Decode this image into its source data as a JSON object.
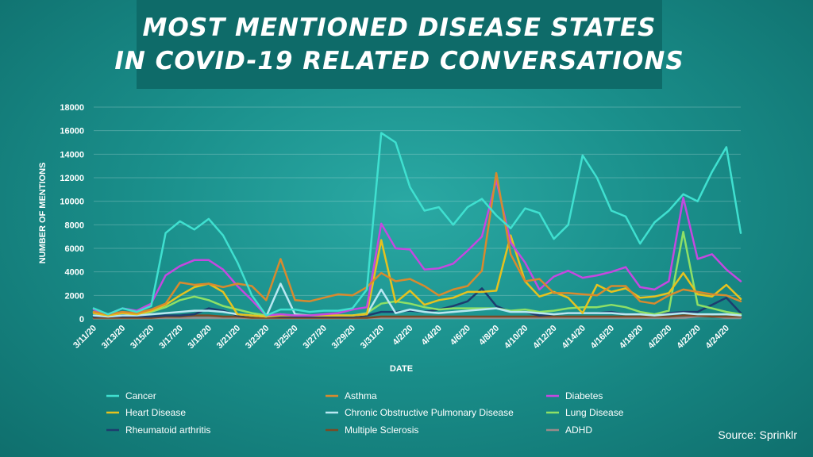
{
  "title": {
    "line1": "MOST MENTIONED DISEASE STATES",
    "line2": "IN COVID-19 RELATED CONVERSATIONS"
  },
  "source": "Source: Sprinklr",
  "chart_data": {
    "type": "line",
    "xlabel": "DATE",
    "ylabel": "NUMBER OF MENTIONS",
    "ylim": [
      0,
      18000
    ],
    "yticks": [
      0,
      2000,
      4000,
      6000,
      8000,
      10000,
      12000,
      14000,
      16000,
      18000
    ],
    "ytick_labels": [
      "0",
      "2000",
      "4000",
      "6000",
      "8000",
      "10000",
      "12000",
      "14000",
      "16000",
      "18000"
    ],
    "x": [
      "3/11/20",
      "3/12/20",
      "3/13/20",
      "3/14/20",
      "3/15/20",
      "3/16/20",
      "3/17/20",
      "3/18/20",
      "3/19/20",
      "3/20/20",
      "3/21/20",
      "3/22/20",
      "3/23/20",
      "3/24/20",
      "3/25/20",
      "3/26/20",
      "3/27/20",
      "3/28/20",
      "3/29/20",
      "3/30/20",
      "3/31/20",
      "4/1/20",
      "4/2/20",
      "4/3/20",
      "4/4/20",
      "4/5/20",
      "4/6/20",
      "4/7/20",
      "4/8/20",
      "4/9/20",
      "4/10/20",
      "4/11/20",
      "4/12/20",
      "4/13/20",
      "4/14/20",
      "4/15/20",
      "4/16/20",
      "4/17/20",
      "4/18/20",
      "4/19/20",
      "4/20/20",
      "4/21/20",
      "4/22/20",
      "4/23/20",
      "4/24/20",
      "4/25/20"
    ],
    "xtick_labels": [
      "3/11/20",
      "3/13/20",
      "3/15/20",
      "3/17/20",
      "3/19/20",
      "3/21/20",
      "3/23/20",
      "3/25/20",
      "3/27/20",
      "3/29/20",
      "3/31/20",
      "4/2/20",
      "4/4/20",
      "4/6/20",
      "4/8/20",
      "4/10/20",
      "4/12/20",
      "4/14/20",
      "4/16/20",
      "4/18/20",
      "4/20/20",
      "4/22/20",
      "4/24/20"
    ],
    "series": [
      {
        "name": "Cancer",
        "color": "#3fe0d0",
        "values": [
          900,
          400,
          900,
          600,
          1100,
          7300,
          8300,
          7600,
          8500,
          7100,
          4800,
          2000,
          300,
          800,
          800,
          600,
          700,
          700,
          900,
          2500,
          15800,
          15000,
          11200,
          9200,
          9500,
          8000,
          9500,
          10200,
          8800,
          7700,
          9400,
          9000,
          6800,
          8000,
          13900,
          12000,
          9200,
          8700,
          6400,
          8200,
          9200,
          10600,
          10000,
          12500,
          14600,
          7300
        ]
      },
      {
        "name": "Asthma",
        "color": "#d88a2e",
        "values": [
          600,
          400,
          600,
          500,
          800,
          1300,
          3100,
          2900,
          3000,
          2700,
          3000,
          2800,
          1600,
          5100,
          1600,
          1500,
          1800,
          2100,
          2000,
          2700,
          3900,
          3200,
          3400,
          2800,
          2000,
          2500,
          2800,
          4100,
          12400,
          5500,
          3200,
          3400,
          2200,
          2200,
          2100,
          2000,
          2800,
          2800,
          1500,
          1300,
          2000,
          2500,
          2300,
          2100,
          2000,
          1500
        ]
      },
      {
        "name": "Diabetes",
        "color": "#c548e0",
        "values": [
          800,
          400,
          900,
          700,
          1300,
          3700,
          4500,
          5000,
          5000,
          4200,
          2800,
          1600,
          300,
          400,
          300,
          300,
          400,
          500,
          800,
          1000,
          8100,
          6000,
          5900,
          4200,
          4300,
          4700,
          5800,
          7000,
          11800,
          6500,
          4800,
          2500,
          3600,
          4100,
          3500,
          3700,
          4000,
          4400,
          2700,
          2500,
          3200,
          10300,
          5100,
          5500,
          4200,
          3200
        ]
      },
      {
        "name": "Heart Disease",
        "color": "#e6c21e",
        "values": [
          500,
          300,
          500,
          400,
          700,
          1200,
          2000,
          2700,
          3000,
          2300,
          400,
          300,
          200,
          300,
          300,
          300,
          300,
          300,
          300,
          400,
          6700,
          1400,
          2400,
          1200,
          1600,
          1800,
          2300,
          2300,
          2400,
          7100,
          3200,
          1900,
          2300,
          1800,
          500,
          2900,
          2300,
          2600,
          1800,
          1900,
          2200,
          3900,
          2100,
          1900,
          2900,
          1700
        ]
      },
      {
        "name": "Chronic Obstructive Pulmonary Disease",
        "color": "#b9e8f2",
        "values": [
          300,
          200,
          300,
          300,
          400,
          500,
          600,
          700,
          700,
          600,
          400,
          300,
          200,
          3000,
          400,
          300,
          300,
          300,
          300,
          400,
          2500,
          500,
          800,
          600,
          500,
          600,
          700,
          800,
          900,
          600,
          600,
          500,
          400,
          500,
          500,
          500,
          500,
          400,
          400,
          300,
          400,
          500,
          400,
          400,
          400,
          300
        ]
      },
      {
        "name": "Lung Disease",
        "color": "#8ee066",
        "values": [
          600,
          400,
          500,
          400,
          600,
          1000,
          1600,
          1900,
          1600,
          1100,
          800,
          500,
          300,
          400,
          300,
          300,
          300,
          300,
          300,
          500,
          1300,
          1500,
          1300,
          1000,
          800,
          900,
          900,
          900,
          900,
          700,
          800,
          600,
          700,
          900,
          1000,
          1000,
          1200,
          1000,
          600,
          400,
          700,
          7400,
          1200,
          900,
          600,
          400
        ]
      },
      {
        "name": "Rheumatoid arthritis",
        "color": "#1d3d6e",
        "values": [
          200,
          200,
          200,
          200,
          200,
          300,
          300,
          400,
          900,
          700,
          300,
          300,
          200,
          200,
          200,
          200,
          200,
          200,
          200,
          300,
          600,
          600,
          700,
          600,
          800,
          1100,
          1500,
          2600,
          1100,
          600,
          600,
          300,
          400,
          500,
          500,
          500,
          600,
          400,
          400,
          400,
          500,
          600,
          600,
          1200,
          1800,
          500
        ]
      },
      {
        "name": "Multiple Sclerosis",
        "color": "#7a4a24",
        "values": [
          100,
          100,
          100,
          100,
          100,
          200,
          200,
          300,
          300,
          200,
          200,
          100,
          100,
          100,
          100,
          100,
          100,
          100,
          100,
          100,
          200,
          200,
          200,
          200,
          200,
          200,
          200,
          200,
          200,
          200,
          200,
          200,
          200,
          200,
          200,
          200,
          200,
          200,
          200,
          200,
          200,
          300,
          300,
          200,
          200,
          200
        ]
      },
      {
        "name": "ADHD",
        "color": "#9a8a8a",
        "values": [
          50,
          50,
          50,
          50,
          50,
          100,
          100,
          100,
          100,
          100,
          100,
          50,
          50,
          50,
          50,
          50,
          50,
          50,
          50,
          50,
          100,
          100,
          100,
          100,
          100,
          100,
          100,
          100,
          100,
          100,
          100,
          100,
          100,
          100,
          100,
          100,
          100,
          100,
          100,
          100,
          100,
          100,
          200,
          200,
          100,
          100
        ]
      }
    ]
  }
}
